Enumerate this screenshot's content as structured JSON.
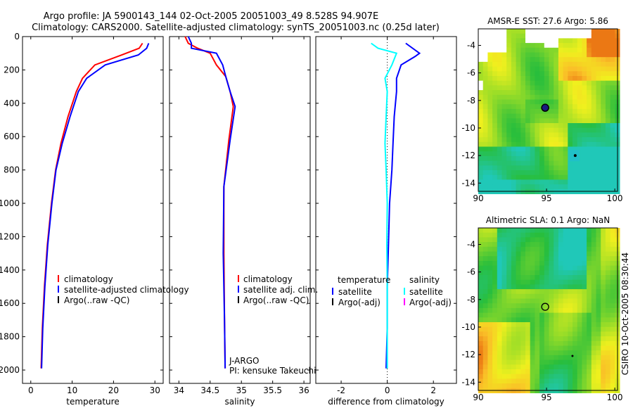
{
  "header": {
    "line1": "Argo profile: JA 5900143_144 02-Oct-2005 20051003_49 8.528S 94.907E",
    "line2": "Climatology: CARS2000. Satellite-adjusted climatology: synTS_20051003.nc (0.25d later)"
  },
  "side_label": "CSIRO 10-Oct-2005 08:30:44",
  "colors": {
    "red": "#ff0000",
    "blue": "#0000ff",
    "cyan": "#00ffff",
    "magenta": "#ff00ff",
    "black": "#000000"
  },
  "chart_data": [
    {
      "type": "line",
      "name": "temperature",
      "xlabel": "temperature",
      "ylabel": "",
      "xlim": [
        -2,
        32
      ],
      "ylim": [
        2080,
        0
      ],
      "xticks": [
        0,
        10,
        20,
        30
      ],
      "xtick_labels": [
        "0",
        "10",
        "20",
        "30"
      ],
      "yticks": [
        0,
        200,
        400,
        600,
        800,
        1000,
        1200,
        1400,
        1600,
        1800,
        2000
      ],
      "ytick_labels": [
        "0",
        "200",
        "400",
        "600",
        "800",
        "1000",
        "1200",
        "1400",
        "1600",
        "1800",
        "2000"
      ],
      "legend": [
        "climatology",
        "satellite-adjusted climatology",
        "Argo(..raw -QC)"
      ],
      "series": [
        {
          "name": "climatology",
          "color": "#ff0000",
          "x": [
            27.0,
            26.2,
            22.0,
            15.5,
            12.5,
            11.0,
            9.0,
            7.3,
            6.0,
            5.0,
            4.0,
            3.3,
            2.8,
            2.5
          ],
          "y": [
            40,
            70,
            110,
            170,
            250,
            330,
            480,
            640,
            800,
            1000,
            1250,
            1500,
            1750,
            1990
          ]
        },
        {
          "name": "satellite-adjusted climatology",
          "color": "#0000ff",
          "x": [
            28.5,
            28.0,
            26.0,
            18.0,
            13.5,
            11.5,
            9.5,
            7.6,
            6.1,
            5.1,
            4.1,
            3.4,
            2.9,
            2.6
          ],
          "y": [
            40,
            70,
            110,
            170,
            250,
            330,
            480,
            640,
            800,
            1000,
            1250,
            1500,
            1750,
            1990
          ]
        }
      ]
    },
    {
      "type": "line",
      "name": "salinity",
      "xlabel": "salinity",
      "xlim": [
        33.85,
        36.1
      ],
      "ylim": [
        2080,
        0
      ],
      "xticks": [
        34,
        34.5,
        35,
        35.5,
        36
      ],
      "xtick_labels": [
        "34",
        "34.5",
        "35",
        "35.5",
        "36"
      ],
      "legend": [
        "climatology",
        "satellite adj. clim.",
        "Argo(..raw -QC)"
      ],
      "annotations": [
        "J-ARGO",
        "PI: kensuke Takeuchi"
      ],
      "series": [
        {
          "name": "climatology",
          "color": "#ff0000",
          "x": [
            34.1,
            34.15,
            34.3,
            34.5,
            34.6,
            34.75,
            34.82,
            34.87,
            34.8,
            34.72,
            34.72,
            34.73,
            34.74
          ],
          "y": [
            0,
            40,
            70,
            100,
            170,
            240,
            330,
            420,
            620,
            900,
            1300,
            1700,
            1990
          ]
        },
        {
          "name": "satellite adj. clim.",
          "color": "#0000ff",
          "x": [
            34.15,
            34.2,
            34.2,
            34.6,
            34.7,
            34.75,
            34.82,
            34.9,
            34.82,
            34.72,
            34.71,
            34.73,
            34.74
          ],
          "y": [
            0,
            40,
            70,
            100,
            170,
            240,
            330,
            420,
            620,
            900,
            1300,
            1700,
            1990
          ]
        }
      ]
    },
    {
      "type": "line",
      "name": "difference",
      "xlabel": "difference from climatology",
      "xlim": [
        -3.1,
        3.0
      ],
      "ylim": [
        2080,
        0
      ],
      "xticks": [
        -2,
        0,
        2
      ],
      "xtick_labels": [
        "-2",
        "0",
        "2"
      ],
      "legend_left_title": "temperature",
      "legend_right_title": "salinity",
      "legend_left": [
        "satellite",
        "Argo(-adj)"
      ],
      "legend_right": [
        "satellite",
        "Argo(-adj)"
      ],
      "series": [
        {
          "name": "temperature satellite",
          "color": "#0000ff",
          "x": [
            0.8,
            1.4,
            1.2,
            0.6,
            0.4,
            0.4,
            0.3,
            0.25,
            0.2,
            0.1,
            0.05,
            0.0,
            0.0,
            -0.05
          ],
          "y": [
            40,
            100,
            120,
            170,
            250,
            330,
            480,
            640,
            800,
            1000,
            1250,
            1500,
            1750,
            1990
          ]
        },
        {
          "name": "salinity satellite",
          "color": "#00ffff",
          "x": [
            -0.7,
            -0.4,
            0.4,
            0.2,
            -0.1,
            0.0,
            -0.05,
            -0.1,
            -0.05,
            0.0,
            -0.02,
            0.0,
            0.0,
            0.0
          ],
          "y": [
            40,
            70,
            100,
            170,
            250,
            330,
            480,
            640,
            800,
            1000,
            1250,
            1500,
            1750,
            1990
          ]
        }
      ]
    },
    {
      "type": "heatmap",
      "name": "sst-map",
      "title": "AMSR-E SST: 27.6 Argo: 5.86",
      "xlim": [
        90,
        100.2
      ],
      "ylim": [
        -14.6,
        -2.8
      ],
      "xticks": [
        90,
        95,
        100
      ],
      "yticks": [
        -4,
        -6,
        -8,
        -10,
        -12,
        -14
      ],
      "float_lon": 94.9,
      "float_lat": -8.53
    },
    {
      "type": "heatmap",
      "name": "sla-map",
      "title": "Altimetric SLA: 0.1 Argo: NaN",
      "xlim": [
        90,
        100.2
      ],
      "ylim": [
        -14.6,
        -2.8
      ],
      "xticks": [
        90,
        95,
        100
      ],
      "yticks": [
        -4,
        -6,
        -8,
        -10,
        -12,
        -14
      ],
      "float_lon": 94.9,
      "float_lat": -8.53
    }
  ]
}
